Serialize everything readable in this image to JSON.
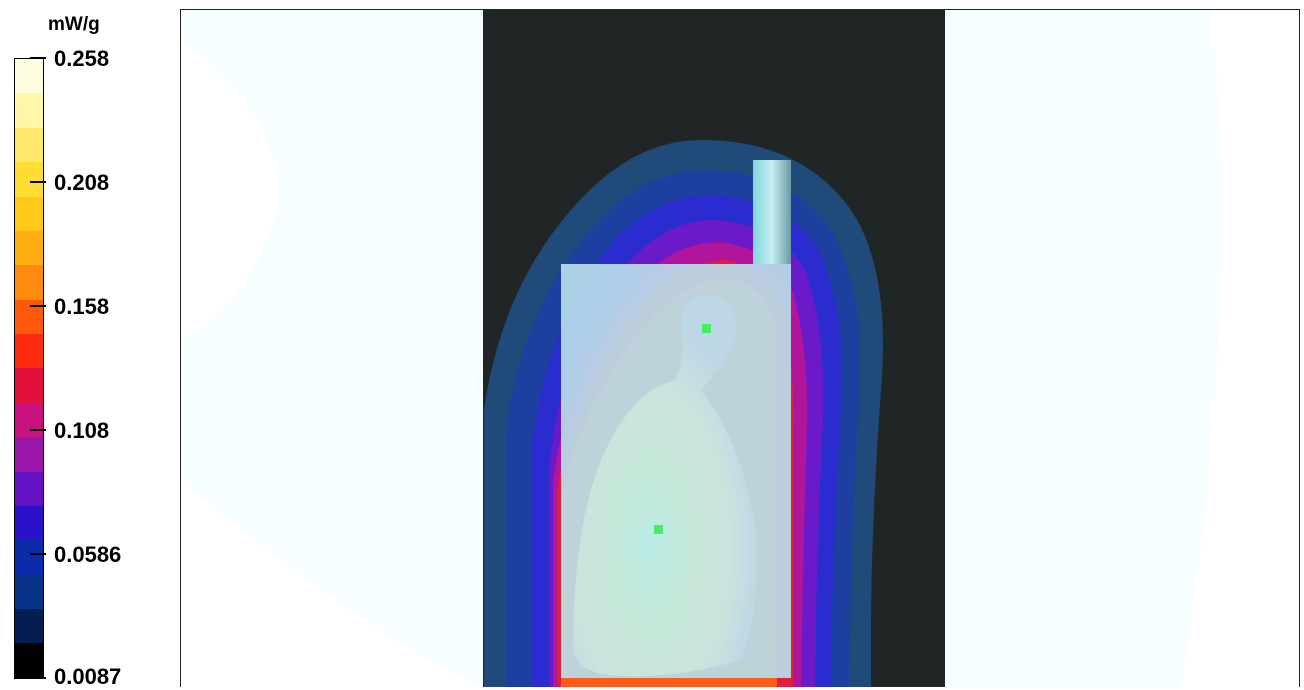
{
  "legend": {
    "unit": "mW/g",
    "ticks": [
      "0.258",
      "0.208",
      "0.158",
      "0.108",
      "0.0586",
      "0.0087"
    ],
    "bands": [
      "#fffde0",
      "#fff6a8",
      "#ffe96c",
      "#ffdd33",
      "#ffc81a",
      "#ffae12",
      "#ff8a10",
      "#ff5a0c",
      "#ff2a10",
      "#e0103a",
      "#c8127e",
      "#9a16a8",
      "#6412c4",
      "#2a12c8",
      "#0a2aa8",
      "#063288",
      "#041e52",
      "#000000"
    ]
  },
  "plot": {
    "peak_points": 2
  }
}
